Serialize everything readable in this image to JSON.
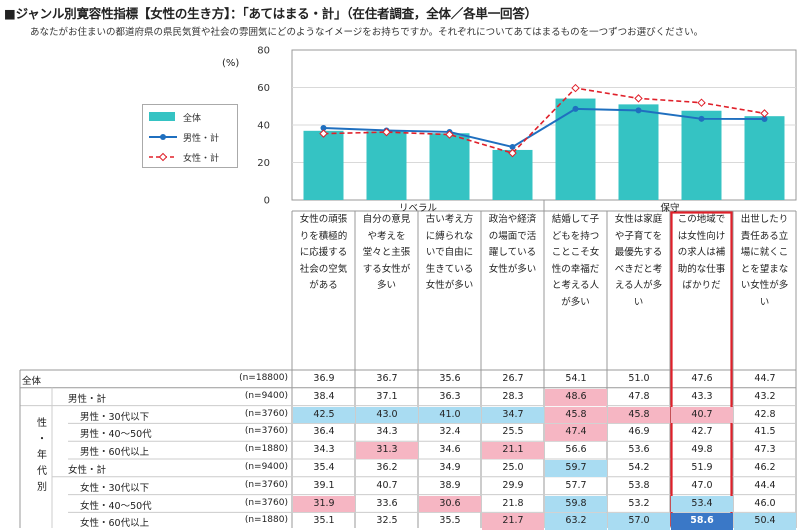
{
  "title": "■ジャンル別寛容性指標【女性の生き方】：「あてはまる・計」（在住者調査，全体／各単一回答）",
  "subtitle": "あなたがお住まいの都道府県の県民気質や社会の雰囲気にどのようなイメージをお持ちですか。それぞれについてあてはまるものを一つずつお選びください。",
  "unit": "(%)",
  "groups": [
    "リベラル",
    "保守"
  ],
  "side_label": [
    "性",
    "・",
    "年",
    "代",
    "別"
  ],
  "colors": {
    "bar": "#35c3c3",
    "male": "#1f6fbf",
    "female": "#e0202a",
    "pink": "#f6b6c3",
    "blue": "#a9dcf2",
    "darkblue": "#3a78c7",
    "highlight": "#e0202a"
  },
  "chart_data": {
    "type": "bar",
    "title": "",
    "ylim": [
      0,
      80
    ],
    "yticks": [
      0,
      20,
      40,
      60,
      80
    ],
    "categories": [
      "女性の頑張りを積極的に応援する社会の空気がある",
      "自分の意見や考えを堂々と主張する女性が多い",
      "古い考え方に縛られないで自由に生きている女性が多い",
      "政治や経済の場面で活躍している女性が多い",
      "結婚して子どもを持つことこそ女性の幸福だと考える人が多い",
      "女性は家庭や子育てを最優先するべきだと考える人が多い",
      "この地域では女性向けの求人は補助的な仕事ばかりだ",
      "出世したり責任ある立場に就くことを望まない女性が多い"
    ],
    "series": [
      {
        "name": "全体",
        "kind": "bar",
        "values": [
          36.9,
          36.7,
          35.6,
          26.7,
          54.1,
          51.0,
          47.6,
          44.7
        ]
      },
      {
        "name": "男性・計",
        "kind": "line",
        "values": [
          38.4,
          37.1,
          36.3,
          28.3,
          48.6,
          47.8,
          43.3,
          43.2
        ]
      },
      {
        "name": "女性・計",
        "kind": "line",
        "values": [
          35.4,
          36.2,
          34.9,
          25.0,
          59.7,
          54.2,
          51.9,
          46.2
        ]
      }
    ]
  },
  "table": {
    "rows": [
      {
        "label": "全体",
        "n": "(n=18800)",
        "values": [
          "36.9",
          "36.7",
          "35.6",
          "26.7",
          "54.1",
          "51.0",
          "47.6",
          "44.7"
        ],
        "shade": [
          "",
          "",
          "",
          "",
          "",
          "",
          "",
          ""
        ]
      },
      {
        "label": "男性・計",
        "n": "(n=9400)",
        "values": [
          "38.4",
          "37.1",
          "36.3",
          "28.3",
          "48.6",
          "47.8",
          "43.3",
          "43.2"
        ],
        "shade": [
          "",
          "",
          "",
          "",
          "pink",
          "",
          "",
          ""
        ]
      },
      {
        "label": "男性・30代以下",
        "n": "(n=3760)",
        "values": [
          "42.5",
          "43.0",
          "41.0",
          "34.7",
          "45.8",
          "45.8",
          "40.7",
          "42.8"
        ],
        "shade": [
          "blue",
          "blue",
          "blue",
          "blue",
          "pink",
          "pink",
          "pink",
          ""
        ]
      },
      {
        "label": "男性・40～50代",
        "n": "(n=3760)",
        "values": [
          "36.4",
          "34.3",
          "32.4",
          "25.5",
          "47.4",
          "46.9",
          "42.7",
          "41.5"
        ],
        "shade": [
          "",
          "",
          "",
          "",
          "pink",
          "",
          "",
          ""
        ]
      },
      {
        "label": "男性・60代以上",
        "n": "(n=1880)",
        "values": [
          "34.3",
          "31.3",
          "34.6",
          "21.1",
          "56.6",
          "53.6",
          "49.8",
          "47.3"
        ],
        "shade": [
          "",
          "pink",
          "",
          "pink",
          "",
          "",
          "",
          ""
        ]
      },
      {
        "label": "女性・計",
        "n": "(n=9400)",
        "values": [
          "35.4",
          "36.2",
          "34.9",
          "25.0",
          "59.7",
          "54.2",
          "51.9",
          "46.2"
        ],
        "shade": [
          "",
          "",
          "",
          "",
          "blue",
          "",
          "",
          ""
        ]
      },
      {
        "label": "女性・30代以下",
        "n": "(n=3760)",
        "values": [
          "39.1",
          "40.7",
          "38.9",
          "29.9",
          "57.7",
          "53.8",
          "47.0",
          "44.4"
        ],
        "shade": [
          "",
          "",
          "",
          "",
          "",
          "",
          "",
          ""
        ]
      },
      {
        "label": "女性・40～50代",
        "n": "(n=3760)",
        "values": [
          "31.9",
          "33.6",
          "30.6",
          "21.8",
          "59.8",
          "53.2",
          "53.4",
          "46.0"
        ],
        "shade": [
          "pink",
          "",
          "pink",
          "",
          "blue",
          "",
          "blue",
          ""
        ]
      },
      {
        "label": "女性・60代以上",
        "n": "(n=1880)",
        "values": [
          "35.1",
          "32.5",
          "35.5",
          "21.7",
          "63.2",
          "57.0",
          "58.6",
          "50.4"
        ],
        "shade": [
          "",
          "",
          "",
          "pink",
          "blue",
          "blue",
          "darkblue",
          "blue"
        ]
      }
    ]
  }
}
